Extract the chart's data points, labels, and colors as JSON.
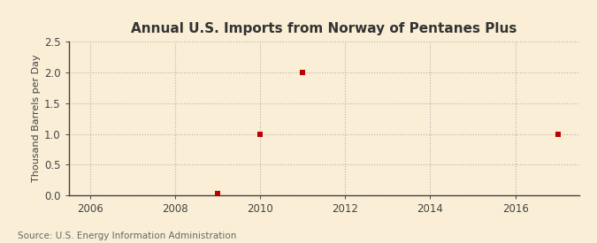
{
  "title": "Annual U.S. Imports from Norway of Pentanes Plus",
  "ylabel": "Thousand Barrels per Day",
  "source": "Source: U.S. Energy Information Administration",
  "background_color": "#faefd6",
  "plot_bg_color": "#faefd6",
  "data_x": [
    2009,
    2010,
    2011,
    2017
  ],
  "data_y": [
    0.03,
    1.0,
    2.0,
    1.0
  ],
  "marker_color": "#bb0000",
  "marker_style": "s",
  "marker_size": 4,
  "xlim": [
    2005.5,
    2017.5
  ],
  "ylim": [
    0,
    2.5
  ],
  "xticks": [
    2006,
    2008,
    2010,
    2012,
    2014,
    2016
  ],
  "yticks": [
    0.0,
    0.5,
    1.0,
    1.5,
    2.0,
    2.5
  ],
  "grid_color": "#aaaaaa",
  "grid_style": ":",
  "grid_alpha": 0.9,
  "title_fontsize": 11,
  "label_fontsize": 8,
  "tick_fontsize": 8.5,
  "source_fontsize": 7.5,
  "spine_color": "#444444",
  "tick_color": "#444444"
}
